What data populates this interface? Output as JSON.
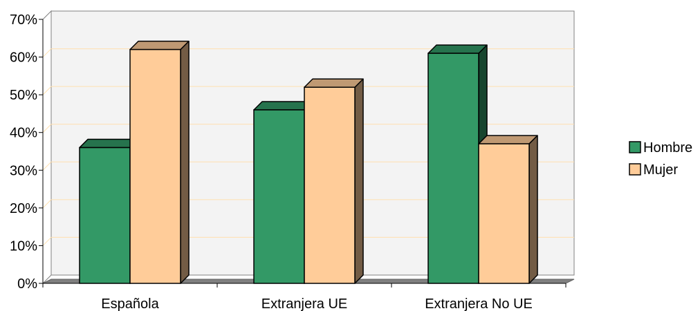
{
  "chart_data": {
    "type": "bar",
    "categories": [
      "Española",
      "Extranjera UE",
      "Extranjera No UE"
    ],
    "series": [
      {
        "name": "Hombre",
        "values": [
          36,
          46,
          61
        ]
      },
      {
        "name": "Mujer",
        "values": [
          62,
          52,
          37
        ]
      }
    ],
    "ylim": [
      0,
      70
    ],
    "y_ticks": [
      "0%",
      "10%",
      "20%",
      "30%",
      "40%",
      "50%",
      "60%",
      "70%"
    ],
    "grid": true,
    "legend_position": "right",
    "colors": {
      "Hombre": "#339966",
      "Mujer": "#FFCC99",
      "gridline": "#FFE0B0",
      "plot_background": "#F3F3F3",
      "floor": "#808080"
    }
  }
}
